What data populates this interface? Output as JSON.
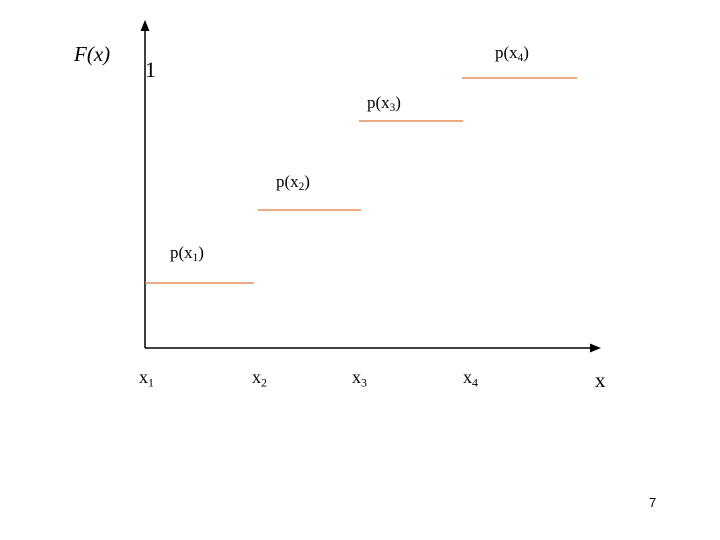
{
  "y_axis": {
    "label": "F(x)",
    "max_tick": "1"
  },
  "x_axis": {
    "label": "x"
  },
  "ticks": [
    {
      "base": "x",
      "sub": "1"
    },
    {
      "base": "x",
      "sub": "2"
    },
    {
      "base": "x",
      "sub": "3"
    },
    {
      "base": "x",
      "sub": "4"
    }
  ],
  "steps": [
    {
      "open": "p(x",
      "sub": "1",
      "close": ")"
    },
    {
      "open": "p(x",
      "sub": "2",
      "close": ")"
    },
    {
      "open": "p(x",
      "sub": "3",
      "close": ")"
    },
    {
      "open": "p(x",
      "sub": "4",
      "close": ")"
    }
  ],
  "step_color": "#e07b39",
  "axis_color": "#000000",
  "page_number": "7"
}
